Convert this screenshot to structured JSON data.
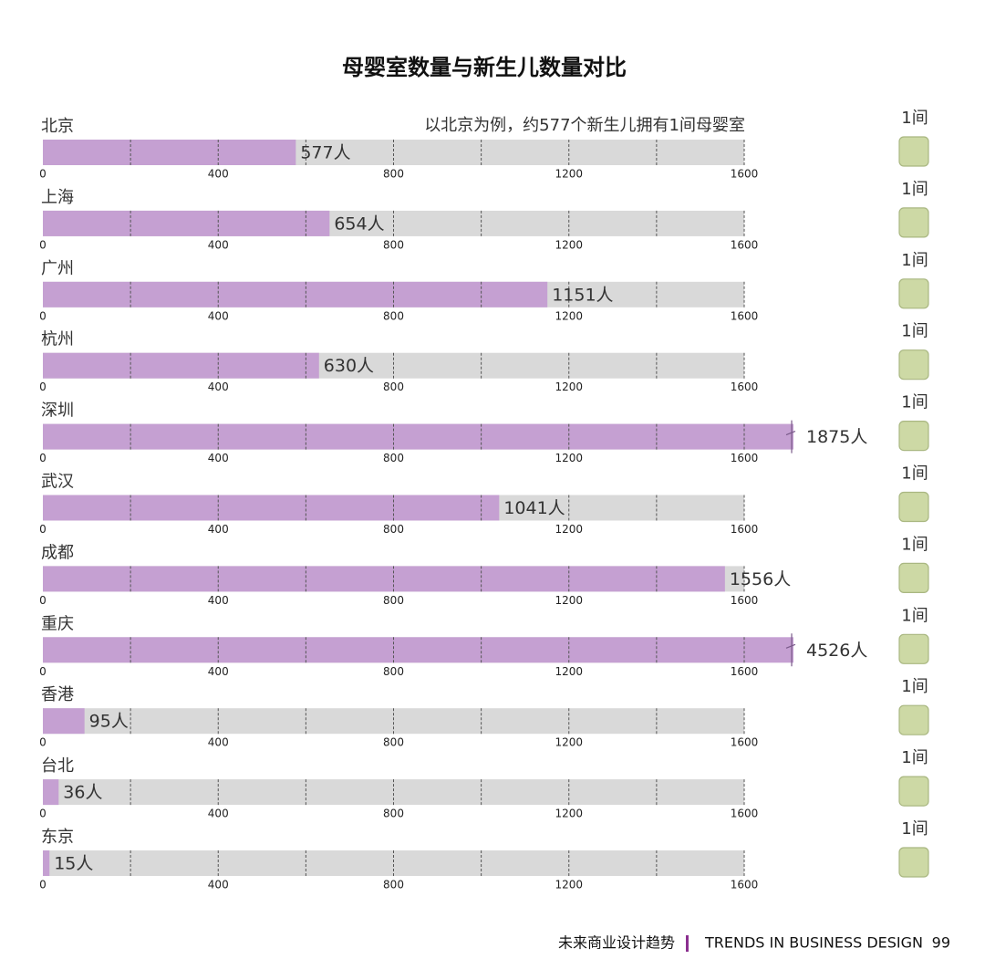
{
  "chart_data": {
    "type": "bar",
    "orientation": "horizontal",
    "title": "母婴室数量与新生儿数量对比",
    "annotation": "以北京为例，约577个新生儿拥有1间母婴室",
    "categories": [
      "北京",
      "上海",
      "广州",
      "杭州",
      "深圳",
      "武汉",
      "成都",
      "重庆",
      "香港",
      "台北",
      "东京"
    ],
    "values": [
      577,
      654,
      1151,
      630,
      1875,
      1041,
      1556,
      4526,
      95,
      36,
      15
    ],
    "value_labels": [
      "577人",
      "654人",
      "1151人",
      "630人",
      "1875人",
      "1041人",
      "1556人",
      "4526人",
      "95人",
      "36人",
      "15人"
    ],
    "color": "#c5a0d2",
    "track_color": "#d9d9d9",
    "xlim": [
      0,
      1600
    ],
    "xticks": [
      0,
      400,
      800,
      1200,
      1600
    ],
    "xminorticks": [
      200,
      600,
      1000,
      1400
    ],
    "grid": true,
    "axis_break": true,
    "rooms": {
      "values": [
        1,
        1,
        1,
        1,
        1,
        1,
        1,
        1,
        1,
        1,
        1
      ],
      "value_labels": [
        "1间",
        "1间",
        "1间",
        "1间",
        "1间",
        "1间",
        "1间",
        "1间",
        "1间",
        "1间",
        "1间"
      ],
      "color": "#cdd9a5"
    }
  },
  "footer": {
    "cn": "未来商业设计趋势",
    "en": "TRENDS IN BUSINESS DESIGN",
    "page": "99"
  }
}
